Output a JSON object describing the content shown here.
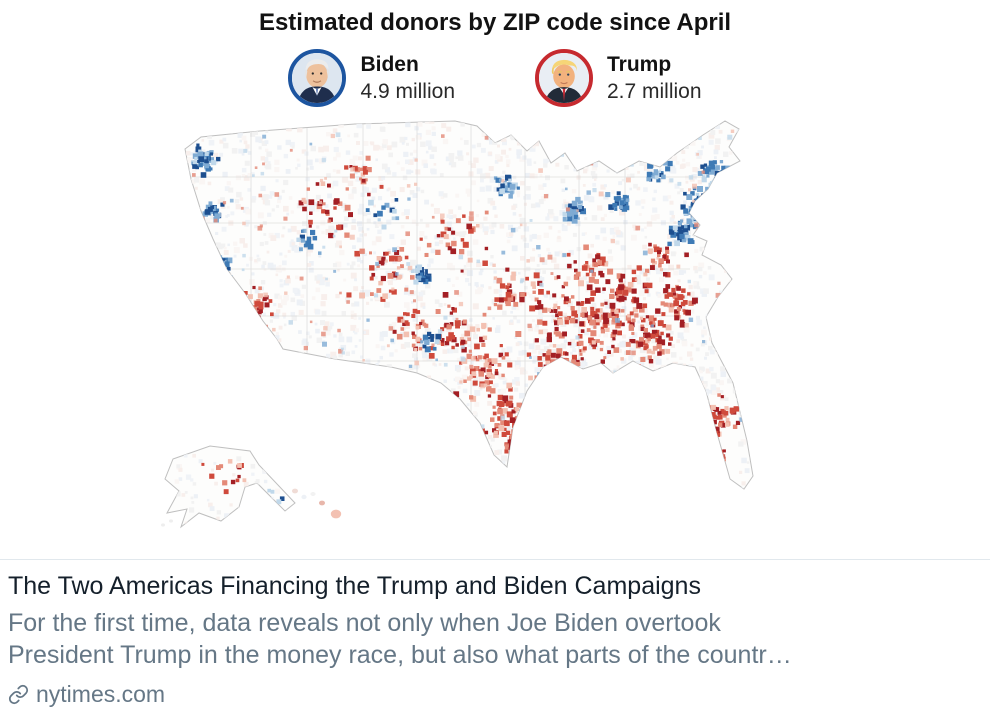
{
  "map_section": {
    "title": "Estimated donors by ZIP code since April",
    "legend": [
      {
        "name": "Biden",
        "value": "4.9 million",
        "ring_color": "#1d55a0"
      },
      {
        "name": "Trump",
        "value": "2.7 million",
        "ring_color": "#c62a2f"
      }
    ]
  },
  "map": {
    "palette": {
      "red": [
        "#a31f24",
        "#cf4a3c",
        "#e48a78",
        "#f3c1b2"
      ],
      "blue": [
        "#1d4f8f",
        "#3e7ab5",
        "#7fabd3",
        "#c0d8ea"
      ],
      "pale": [
        "#f2f2f2",
        "#f8efec",
        "#edf1f6",
        "#faf6f4",
        "#f0f3f7"
      ]
    },
    "land_color": "#fdfdfc",
    "border_color": "#bfbfbf"
  },
  "article": {
    "title": "The Two Americas Financing the Trump and Biden Campaigns",
    "description_line1": "For the first time, data reveals not only when Joe Biden overtook",
    "description_line2": "President Trump in the money race, but also what parts of the countr…",
    "source": "nytimes.com"
  }
}
